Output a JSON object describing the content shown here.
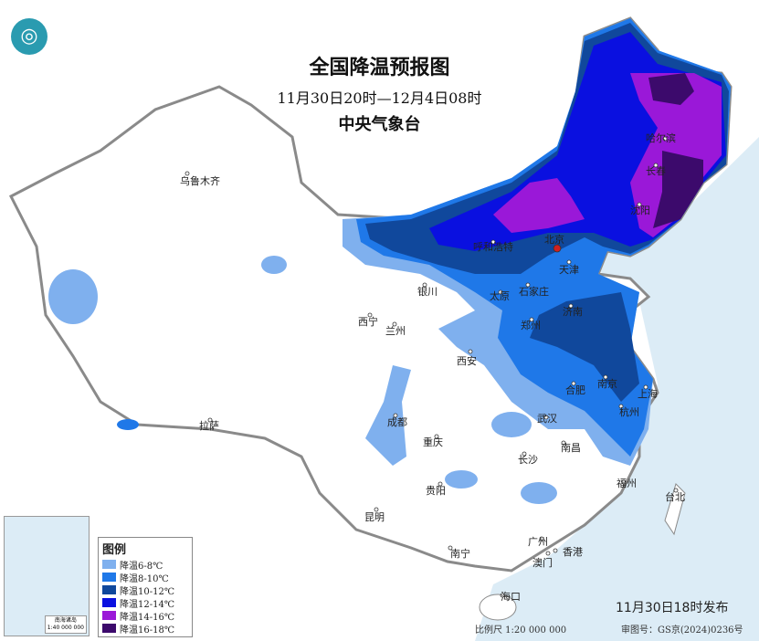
{
  "header": {
    "title": "全国降温预报图",
    "period": "11月30日20时—12月4日08时",
    "issuer": "中央气象台"
  },
  "legend": {
    "title": "图例",
    "items": [
      {
        "label": "降温6-8℃",
        "color": "#7fb0ee"
      },
      {
        "label": "降温8-10℃",
        "color": "#1f78e8"
      },
      {
        "label": "降温10-12℃",
        "color": "#10489c"
      },
      {
        "label": "降温12-14℃",
        "color": "#0a10e0"
      },
      {
        "label": "降温14-16℃",
        "color": "#9a18d8"
      },
      {
        "label": "降温16-18℃",
        "color": "#3c0a6c"
      }
    ]
  },
  "footer": {
    "issued": "11月30日18时发布",
    "scale": "比例尺 1:20 000 000",
    "review_no": "审图号：GS京(2024)0236号"
  },
  "inset": {
    "label": "南海诸岛",
    "scale": "1:40 000 000"
  },
  "cities": [
    "乌鲁木齐",
    "西宁",
    "兰州",
    "银川",
    "呼和浩特",
    "北京",
    "天津",
    "太原",
    "石家庄",
    "济南",
    "郑州",
    "西安",
    "拉萨",
    "成都",
    "重庆",
    "武汉",
    "合肥",
    "南京",
    "上海",
    "杭州",
    "南昌",
    "长沙",
    "贵阳",
    "昆明",
    "南宁",
    "广州",
    "澳门",
    "香港",
    "海口",
    "福州",
    "台北",
    "沈阳",
    "长春",
    "哈尔滨"
  ],
  "colors": {
    "sea": "#dcecf6",
    "land": "#ffffff",
    "border": "#8a8a8a",
    "capital": "#d02020"
  }
}
